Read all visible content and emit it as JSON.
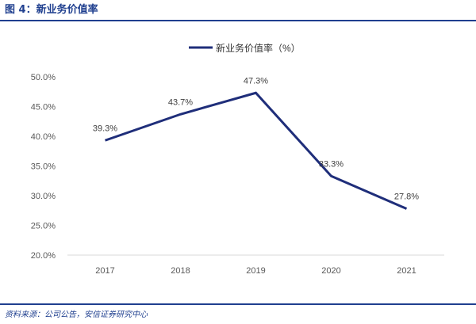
{
  "figure": {
    "title": "图 4：新业务价值率",
    "source": "资料来源：公司公告，安信证券研究中心"
  },
  "chart_data": {
    "type": "line",
    "title": "",
    "xlabel": "",
    "ylabel": "",
    "categories": [
      "2017",
      "2018",
      "2019",
      "2020",
      "2021"
    ],
    "series": [
      {
        "name": "新业务价值率（%）",
        "values": [
          39.3,
          43.7,
          47.3,
          33.3,
          27.8
        ],
        "labels": [
          "39.3%",
          "43.7%",
          "47.3%",
          "33.3%",
          "27.8%"
        ],
        "color": "#1f2e7a"
      }
    ],
    "ylim": [
      20,
      50
    ],
    "yticks": [
      {
        "value": 50,
        "label": "50.0%"
      },
      {
        "value": 45,
        "label": "45.0%"
      },
      {
        "value": 40,
        "label": "40.0%"
      },
      {
        "value": 35,
        "label": "35.0%"
      },
      {
        "value": 30,
        "label": "30.0%"
      },
      {
        "value": 25,
        "label": "25.0%"
      },
      {
        "value": 20,
        "label": "20.0%"
      }
    ],
    "grid": false,
    "legend": "top-center"
  }
}
